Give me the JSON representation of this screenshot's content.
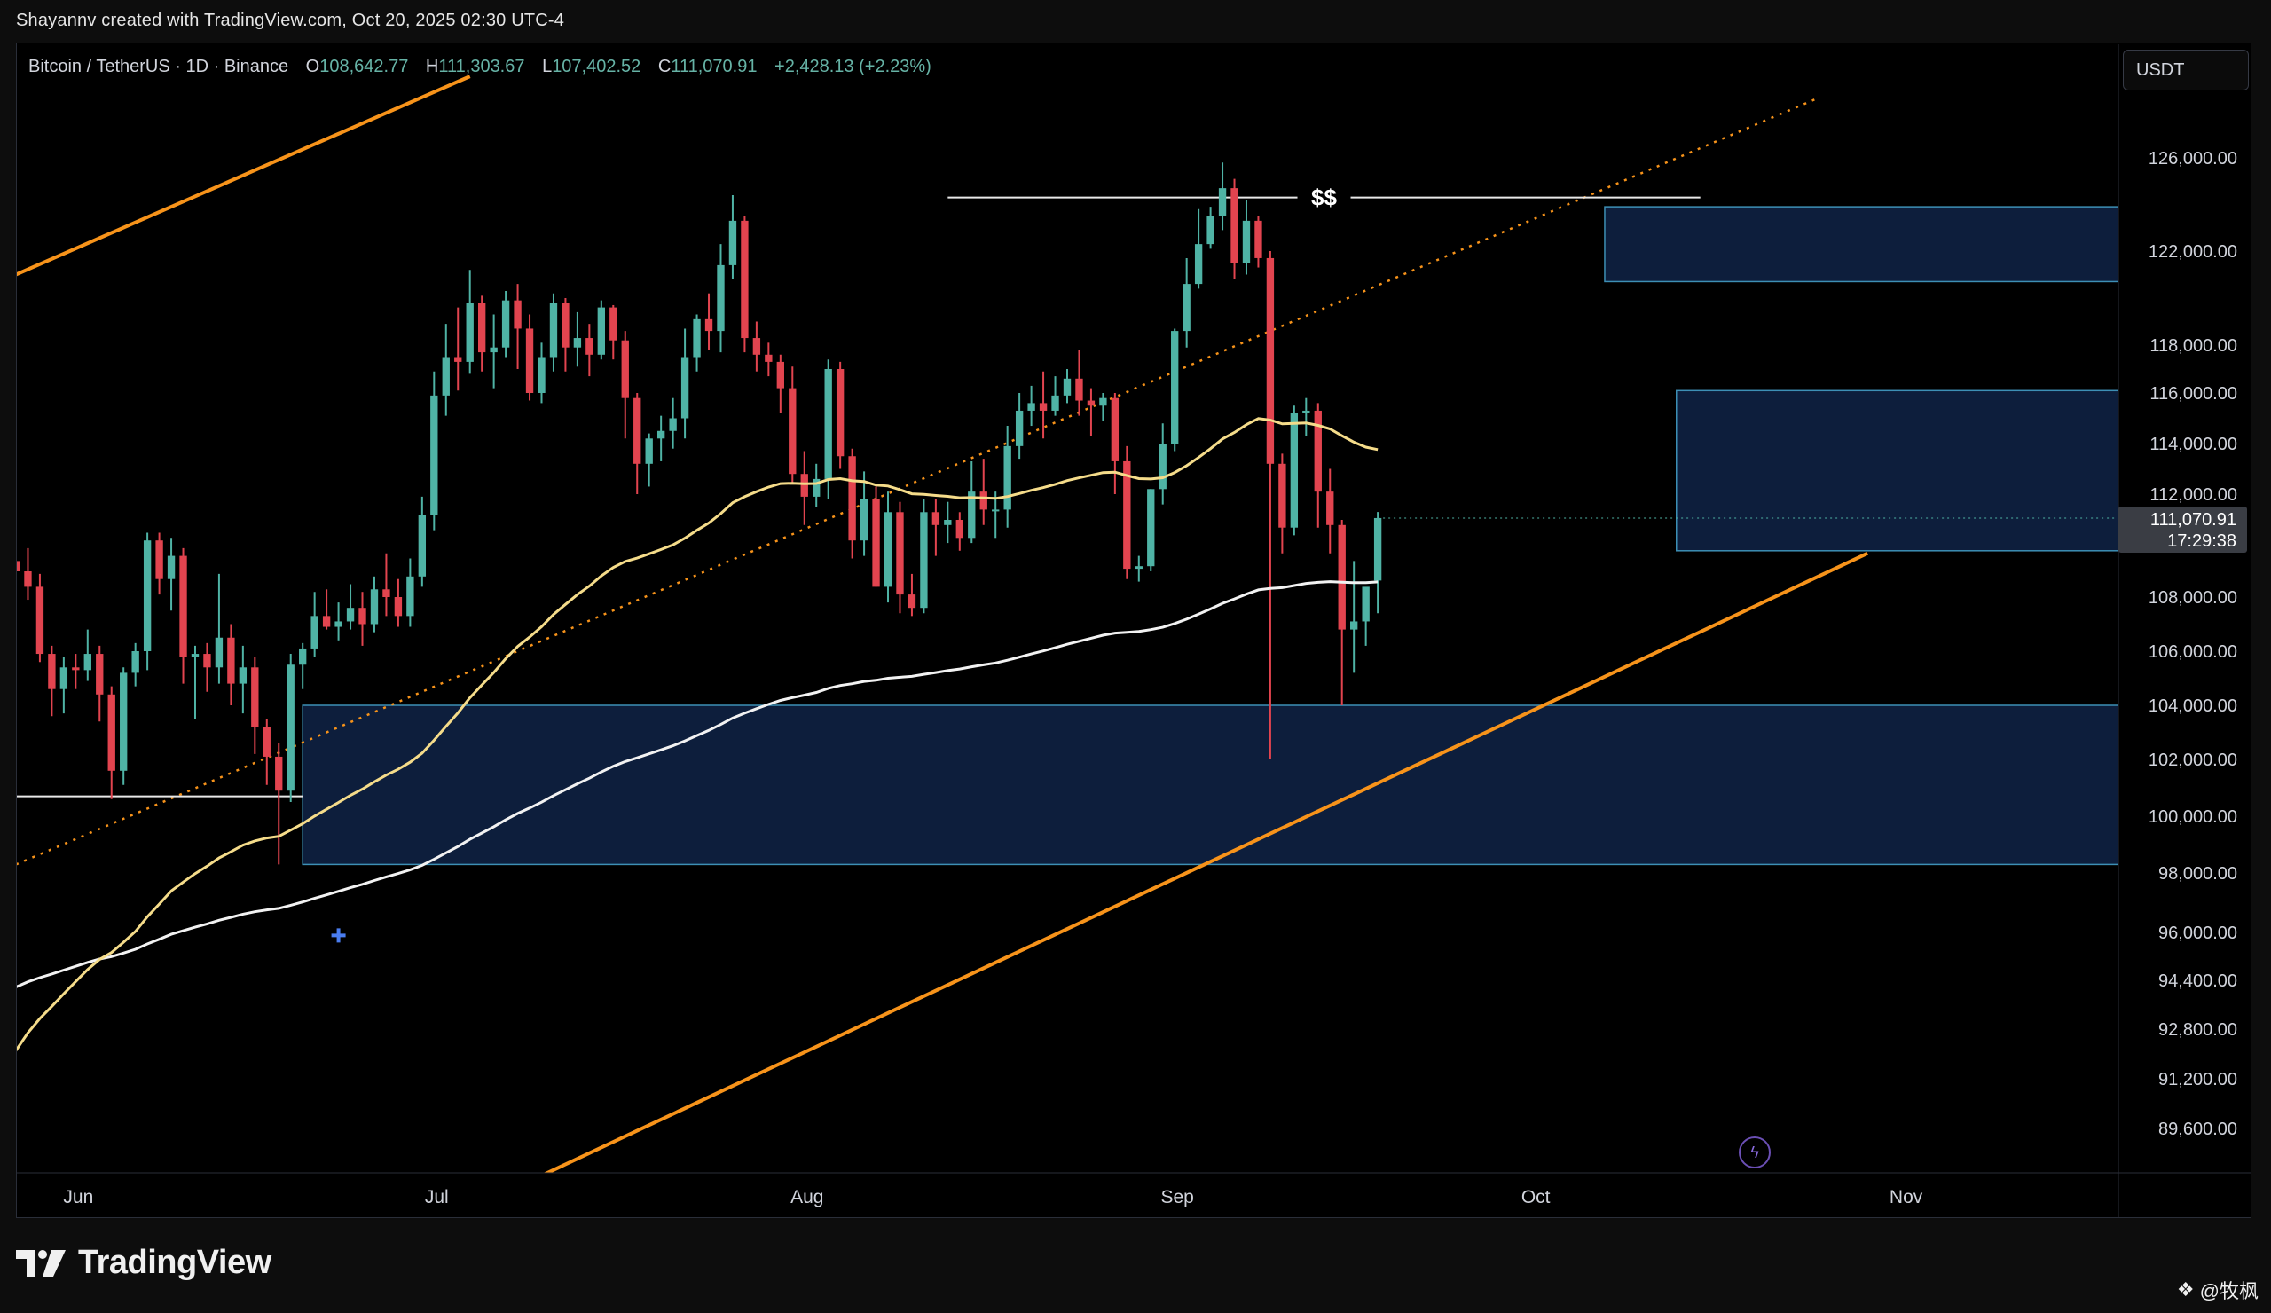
{
  "header": {
    "text": "Shayannv created with TradingView.com, Oct 20, 2025 02:30 UTC-4"
  },
  "legend": {
    "symbol": "Bitcoin / TetherUS · 1D · Binance",
    "o_label": "O",
    "o_value": "108,642.77",
    "h_label": "H",
    "h_value": "111,303.67",
    "l_label": "L",
    "l_value": "107,402.52",
    "c_label": "C",
    "c_value": "111,070.91",
    "change": "+2,428.13 (+2.23%)"
  },
  "currency_button": "USDT",
  "last_price": {
    "price": "111,070.91",
    "countdown": "17:29:38"
  },
  "annotation_liquidity": "$$",
  "footer": {
    "logo": "TradingView",
    "watermark": "@牧枫"
  },
  "colors": {
    "up": "#4fb3a5",
    "down": "#e2444f",
    "ma_yellow": "#f5dc8a",
    "ma_white": "#f2f2f2",
    "channel": "#f7931a",
    "zone_fill": "#0e203f",
    "zone_border": "#3d8fb5"
  },
  "chart_data": {
    "type": "candlestick",
    "symbol": "BTCUSDT",
    "interval": "1D",
    "exchange": "Binance",
    "y_ticks": [
      126000,
      122000,
      118000,
      116000,
      114000,
      112000,
      108000,
      106000,
      104000,
      102000,
      100000,
      98000,
      96000,
      94400,
      92800,
      91200,
      89600
    ],
    "x_ticks": [
      "Jun",
      "Jul",
      "Aug",
      "Sep",
      "Oct",
      "Nov"
    ],
    "x_tick_dates": [
      "2025-06-01",
      "2025-07-01",
      "2025-08-01",
      "2025-09-01",
      "2025-10-01",
      "2025-11-01"
    ],
    "x_range": [
      "2025-05-27",
      "2025-11-19"
    ],
    "candles_start_date": "2025-05-27",
    "ohlc": [
      [
        109400,
        110200,
        108600,
        109000
      ],
      [
        109000,
        109900,
        107900,
        108400
      ],
      [
        108400,
        108900,
        105600,
        105900
      ],
      [
        105900,
        106200,
        103600,
        104600
      ],
      [
        104600,
        105800,
        103700,
        105400
      ],
      [
        105400,
        105900,
        104600,
        105300
      ],
      [
        105300,
        106800,
        104900,
        105900
      ],
      [
        105900,
        106200,
        103400,
        104400
      ],
      [
        104400,
        104700,
        100600,
        101600
      ],
      [
        101600,
        105400,
        101100,
        105200
      ],
      [
        105200,
        106300,
        104700,
        106000
      ],
      [
        106000,
        110500,
        105300,
        110200
      ],
      [
        110200,
        110500,
        108100,
        108700
      ],
      [
        108700,
        110300,
        107500,
        109600
      ],
      [
        109600,
        109900,
        104800,
        105800
      ],
      [
        105800,
        106200,
        103500,
        105900
      ],
      [
        105900,
        106300,
        104500,
        105400
      ],
      [
        105400,
        108900,
        104800,
        106500
      ],
      [
        106500,
        107000,
        104000,
        104800
      ],
      [
        104800,
        106200,
        103700,
        105400
      ],
      [
        105400,
        105800,
        102200,
        103200
      ],
      [
        103200,
        103500,
        101100,
        102100
      ],
      [
        102100,
        102600,
        98300,
        100900
      ],
      [
        100900,
        105900,
        100500,
        105500
      ],
      [
        105500,
        106300,
        104600,
        106100
      ],
      [
        106100,
        108200,
        105800,
        107300
      ],
      [
        107300,
        108300,
        106800,
        106900
      ],
      [
        106900,
        107800,
        106400,
        107100
      ],
      [
        107100,
        108500,
        106800,
        107600
      ],
      [
        107600,
        108200,
        106200,
        107000
      ],
      [
        107000,
        108800,
        106700,
        108300
      ],
      [
        108300,
        109700,
        107300,
        108000
      ],
      [
        108000,
        108700,
        106900,
        107300
      ],
      [
        107300,
        109500,
        106900,
        108800
      ],
      [
        108800,
        111900,
        108400,
        111200
      ],
      [
        111200,
        116900,
        110600,
        115900
      ],
      [
        115900,
        118900,
        115100,
        117500
      ],
      [
        117500,
        119600,
        116100,
        117300
      ],
      [
        117300,
        121200,
        116800,
        119800
      ],
      [
        119800,
        120100,
        116900,
        117700
      ],
      [
        117700,
        119300,
        116200,
        117900
      ],
      [
        117900,
        120300,
        117500,
        119900
      ],
      [
        119900,
        120600,
        117000,
        118700
      ],
      [
        118700,
        119300,
        115700,
        116000
      ],
      [
        116000,
        118100,
        115600,
        117500
      ],
      [
        117500,
        120200,
        116900,
        119800
      ],
      [
        119800,
        120000,
        116900,
        117900
      ],
      [
        117900,
        119400,
        117100,
        118300
      ],
      [
        118300,
        118900,
        116700,
        117600
      ],
      [
        117600,
        119900,
        117400,
        119600
      ],
      [
        119600,
        119700,
        117400,
        118200
      ],
      [
        118200,
        118600,
        114200,
        115800
      ],
      [
        115800,
        116000,
        112000,
        113200
      ],
      [
        113200,
        114400,
        112300,
        114200
      ],
      [
        114200,
        115100,
        113300,
        114500
      ],
      [
        114500,
        115800,
        113800,
        115000
      ],
      [
        115000,
        118700,
        114200,
        117500
      ],
      [
        117500,
        119300,
        116900,
        119100
      ],
      [
        119100,
        120200,
        117800,
        118600
      ],
      [
        118600,
        122300,
        117700,
        121400
      ],
      [
        121400,
        124400,
        120800,
        123300
      ],
      [
        123300,
        123500,
        117700,
        118300
      ],
      [
        118300,
        119000,
        116900,
        117600
      ],
      [
        117600,
        118100,
        116700,
        117300
      ],
      [
        117300,
        117600,
        115200,
        116200
      ],
      [
        116200,
        117100,
        112400,
        112800
      ],
      [
        112800,
        113700,
        110800,
        111900
      ],
      [
        111900,
        113200,
        111500,
        112600
      ],
      [
        112600,
        117400,
        111800,
        117000
      ],
      [
        117000,
        117300,
        113000,
        113500
      ],
      [
        113500,
        113800,
        109500,
        110200
      ],
      [
        110200,
        112900,
        109600,
        111800
      ],
      [
        111800,
        112300,
        108400,
        108400
      ],
      [
        108400,
        112100,
        107800,
        111300
      ],
      [
        111300,
        111700,
        107400,
        108100
      ],
      [
        108100,
        108900,
        107300,
        107600
      ],
      [
        107600,
        111800,
        107400,
        111300
      ],
      [
        111300,
        111800,
        109600,
        110800
      ],
      [
        110800,
        111700,
        110100,
        111000
      ],
      [
        111000,
        111300,
        109800,
        110300
      ],
      [
        110300,
        113300,
        110100,
        112100
      ],
      [
        112100,
        113400,
        110800,
        111400
      ],
      [
        111400,
        112100,
        110300,
        111400
      ],
      [
        111400,
        114700,
        110700,
        113900
      ],
      [
        113900,
        116000,
        113400,
        115300
      ],
      [
        115300,
        116300,
        114700,
        115600
      ],
      [
        115600,
        116900,
        114200,
        115300
      ],
      [
        115300,
        116700,
        115100,
        115900
      ],
      [
        115900,
        117000,
        115600,
        116600
      ],
      [
        116600,
        117800,
        115100,
        115700
      ],
      [
        115700,
        116200,
        114300,
        115500
      ],
      [
        115500,
        116000,
        114900,
        115800
      ],
      [
        115800,
        116000,
        112000,
        113300
      ],
      [
        113300,
        113900,
        108700,
        109100
      ],
      [
        109100,
        109600,
        108600,
        109200
      ],
      [
        109200,
        112200,
        109000,
        112200
      ],
      [
        112200,
        114800,
        111600,
        114000
      ],
      [
        114000,
        118700,
        113700,
        118600
      ],
      [
        118600,
        121700,
        117900,
        120600
      ],
      [
        120600,
        123800,
        120400,
        122300
      ],
      [
        122300,
        123900,
        122100,
        123500
      ],
      [
        123500,
        125800,
        122900,
        124700
      ],
      [
        124700,
        125100,
        120800,
        121500
      ],
      [
        121500,
        124200,
        121000,
        123300
      ],
      [
        123300,
        123500,
        121300,
        121700
      ],
      [
        121700,
        122000,
        102000,
        113200
      ],
      [
        113200,
        113600,
        109700,
        110700
      ],
      [
        110700,
        115500,
        110400,
        115200
      ],
      [
        115200,
        115800,
        114300,
        115300
      ],
      [
        115300,
        115600,
        110700,
        112100
      ],
      [
        112100,
        113000,
        109700,
        110800
      ],
      [
        110800,
        111000,
        104000,
        106800
      ],
      [
        106800,
        109400,
        105200,
        107100
      ],
      [
        107100,
        108300,
        106200,
        108400
      ],
      [
        108642,
        111304,
        107403,
        111071
      ]
    ],
    "ma_yellow_label": "MA (yellow)",
    "ma_white_label": "MA (white)",
    "zones": [
      {
        "top": 123900,
        "bottom": 120700,
        "from": "2025-10-07"
      },
      {
        "top": 116100,
        "bottom": 109800,
        "from": "2025-10-13"
      },
      {
        "top": 104000,
        "bottom": 98300,
        "from": "2025-06-20"
      }
    ],
    "liquidity_line": {
      "price": 124300,
      "from": "2025-08-13",
      "to": "2025-10-15",
      "label": "$$"
    },
    "low_line": {
      "price": 100700,
      "from": "2025-05-27",
      "to": "2025-06-20"
    },
    "channel_upper_solid": [
      [
        "2025-05-27",
        121000
      ],
      [
        "2025-07-04",
        129500
      ]
    ],
    "channel_lower_solid": [
      [
        "2025-07-04",
        87000
      ],
      [
        "2025-10-29",
        109700
      ]
    ],
    "channel_dotted": [
      [
        "2025-05-27",
        98300
      ],
      [
        "2025-10-25",
        128600
      ]
    ],
    "cross_marker": {
      "date": "2025-06-23",
      "price": 95900
    }
  }
}
